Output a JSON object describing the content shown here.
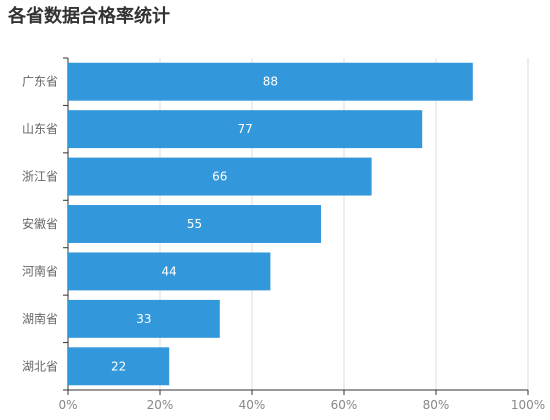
{
  "chart_data": {
    "type": "bar",
    "orientation": "horizontal",
    "title": "各省数据合格率统计",
    "categories": [
      "广东省",
      "山东省",
      "浙江省",
      "安徽省",
      "河南省",
      "湖南省",
      "湖北省"
    ],
    "values": [
      88,
      77,
      66,
      55,
      44,
      33,
      22
    ],
    "xlim": [
      0,
      100
    ],
    "x_ticks": [
      "0%",
      "20%",
      "40%",
      "60%",
      "80%",
      "100%"
    ],
    "x_grid": true,
    "bar_color": "#3398DB",
    "data_labels": true
  }
}
